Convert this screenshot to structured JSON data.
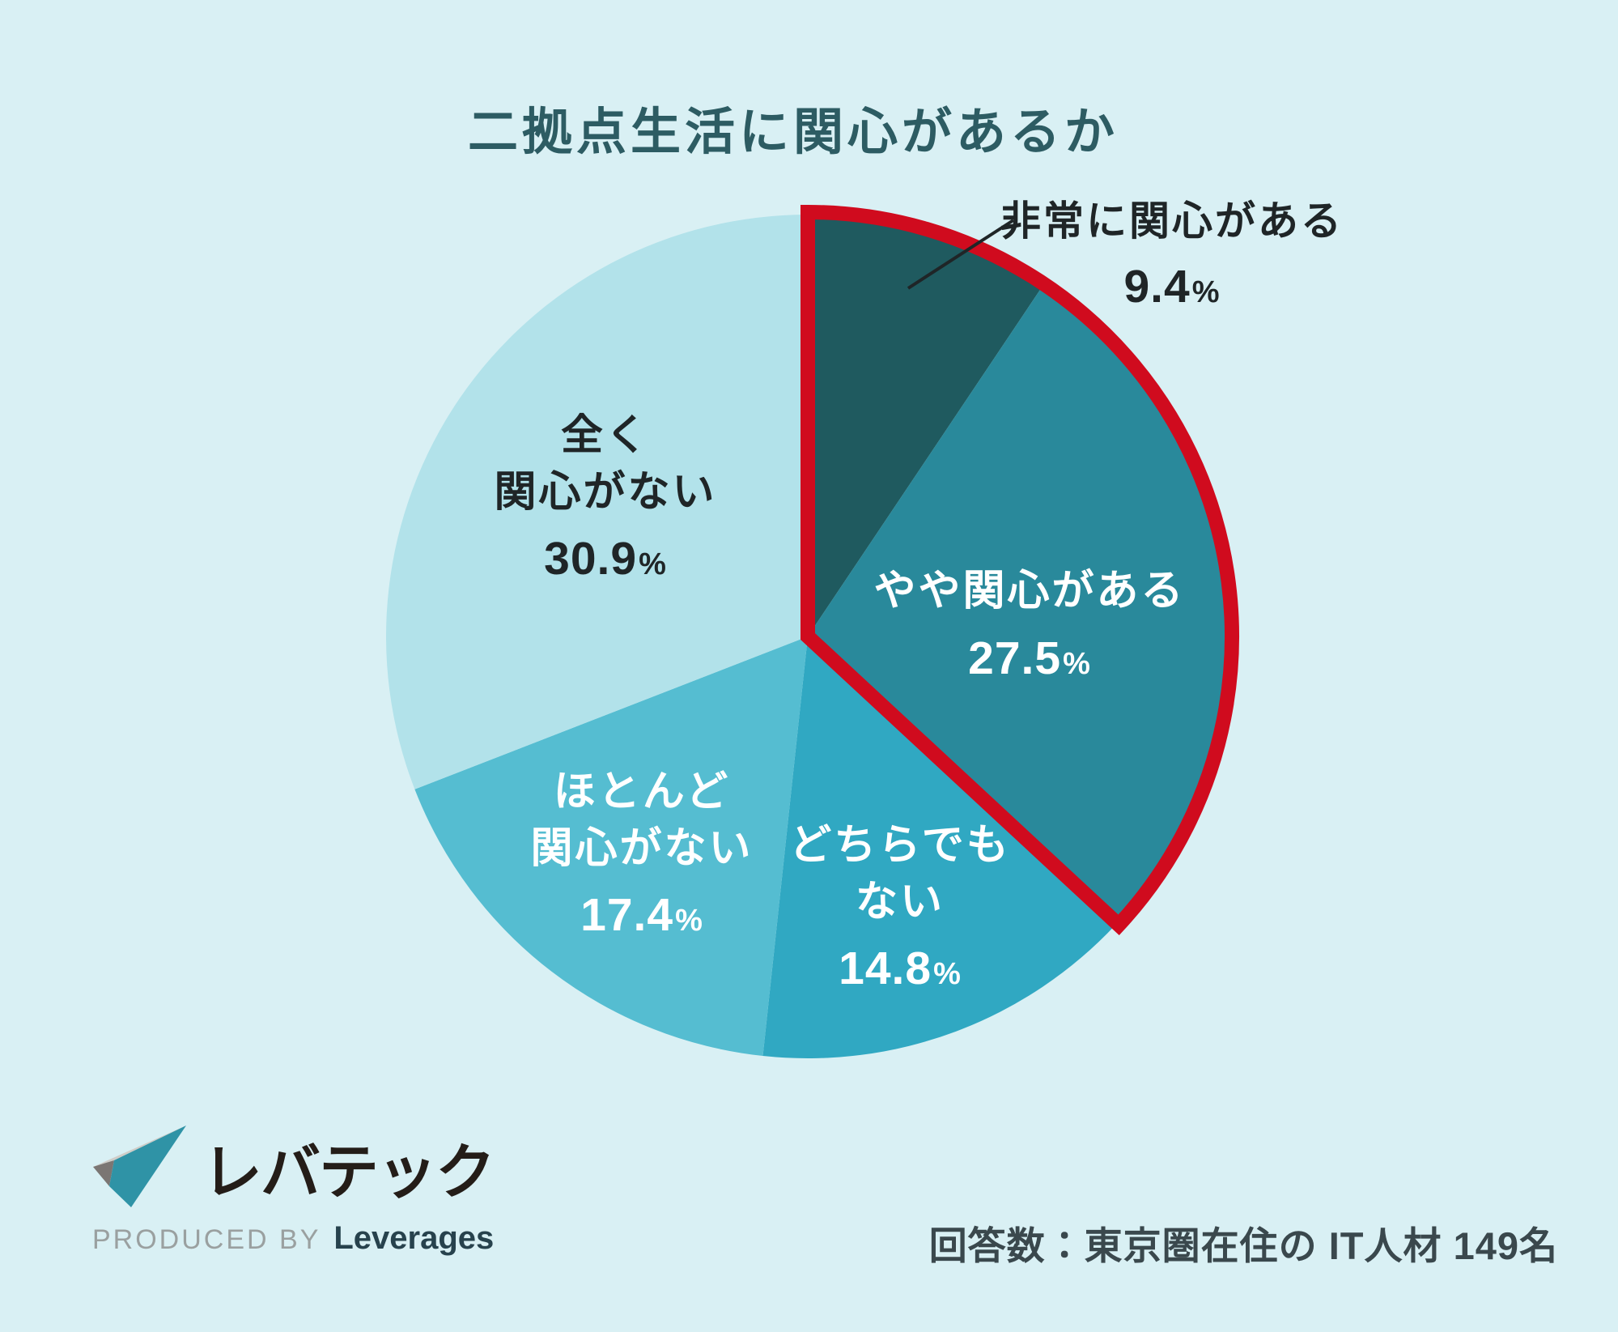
{
  "title": "二拠点生活に関心があるか",
  "chart_data": {
    "type": "pie",
    "title": "二拠点生活に関心があるか",
    "unit": "%",
    "start_angle_deg": 0,
    "direction": "clockwise",
    "percent_sign": "%",
    "highlight_color": "#d00b1e",
    "legend_position": "labels-on-slices",
    "slices": [
      {
        "label": "非常に関心がある",
        "label_lines": [
          "非常に関心がある"
        ],
        "value": 9.4,
        "value_text": "9.4",
        "color": "#1f5a5f",
        "label_placement": "outside",
        "highlighted": true
      },
      {
        "label": "やや関心がある",
        "label_lines": [
          "やや関心がある"
        ],
        "value": 27.5,
        "value_text": "27.5",
        "color": "#29899b",
        "label_placement": "inside",
        "highlighted": true
      },
      {
        "label": "どちらでもない",
        "label_lines": [
          "どちらでも",
          "ない"
        ],
        "value": 14.8,
        "value_text": "14.8",
        "color": "#30a8c2",
        "label_placement": "inside",
        "highlighted": false
      },
      {
        "label": "ほとんど関心がない",
        "label_lines": [
          "ほとんど",
          "関心がない"
        ],
        "value": 17.4,
        "value_text": "17.4",
        "color": "#55bdd1",
        "label_placement": "inside",
        "highlighted": false
      },
      {
        "label": "全く関心がない",
        "label_lines": [
          "全く",
          "関心がない"
        ],
        "value": 30.9,
        "value_text": "30.9",
        "color": "#b2e2ea",
        "label_placement": "inside",
        "highlighted": false
      }
    ]
  },
  "footer": {
    "note": "回答数：東京圏在住の IT人材 149名",
    "logo": {
      "brand": "レバテック",
      "produced_by": "PRODUCED BY",
      "company": "Leverages"
    }
  },
  "colors": {
    "background": "#d9f0f4",
    "title_text": "#2d5c63",
    "dark_label_text": "#1f2527",
    "light_label_text": "#ffffff",
    "note_text": "#3a484d",
    "highlight_outline": "#d00b1e",
    "logo_mark_teal": "#2f93a6",
    "logo_mark_light_gray": "#cfcdc8",
    "logo_mark_dark_gray": "#7b7673"
  }
}
